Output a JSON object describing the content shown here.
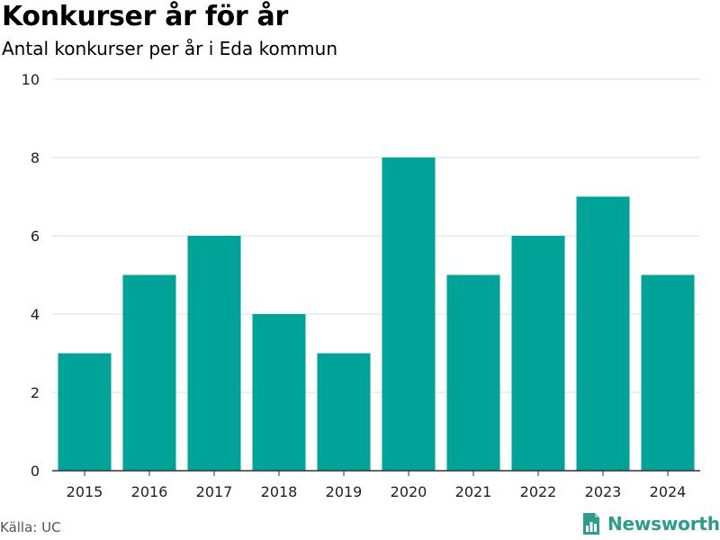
{
  "header": {
    "title": "Konkurser år för år",
    "subtitle": "Antal konkurser per år i Eda kommun"
  },
  "footer": {
    "source": "Källa: UC",
    "brand": "Newsworthy",
    "logo_icon": "bar-chart-document-icon"
  },
  "colors": {
    "bar": "#00a398",
    "grid": "#dddddd",
    "axis": "#333333",
    "brand": "#2c9c8c"
  },
  "chart_data": {
    "type": "bar",
    "title": "Konkurser år för år",
    "subtitle": "Antal konkurser per år i Eda kommun",
    "categories": [
      "2015",
      "2016",
      "2017",
      "2018",
      "2019",
      "2020",
      "2021",
      "2022",
      "2023",
      "2024"
    ],
    "values": [
      3,
      5,
      6,
      4,
      3,
      8,
      5,
      6,
      7,
      5
    ],
    "xlabel": "",
    "ylabel": "",
    "ylim": [
      0,
      10
    ],
    "yticks": [
      0,
      2,
      4,
      6,
      8,
      10
    ],
    "grid": true,
    "legend": "none"
  }
}
